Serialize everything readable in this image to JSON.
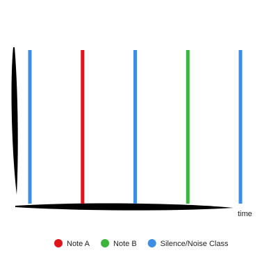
{
  "axis_label": "time",
  "events": [
    "#3a8ee6",
    "#e0151a",
    "#3a8ee6",
    "#3cb43c",
    "#3a8ee6"
  ],
  "legend": [
    {
      "label": "Note A",
      "color": "#e0151a"
    },
    {
      "label": "Note B",
      "color": "#3cb43c"
    },
    {
      "label": "Silence/Noise Class",
      "color": "#3a8ee6"
    }
  ]
}
